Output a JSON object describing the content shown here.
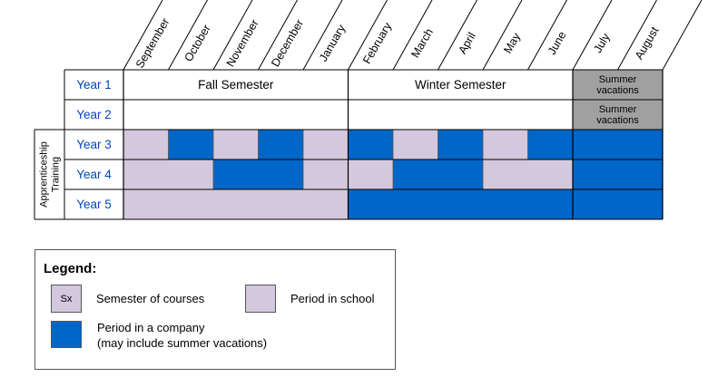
{
  "months": [
    "September",
    "October",
    "November",
    "December",
    "January",
    "February",
    "March",
    "April",
    "May",
    "June",
    "July",
    "August"
  ],
  "years": [
    "Year 1",
    "Year 2",
    "Year 3",
    "Year 4",
    "Year 5"
  ],
  "semesters": {
    "fall": "Fall Semester",
    "winter": "Winter Semester",
    "summer_line1": "Summer",
    "summer_line2": "vacations"
  },
  "side_label": {
    "line1": "Apprenticeship",
    "line2": "Training"
  },
  "schedule": {
    "year3": [
      "school",
      "company",
      "school",
      "company",
      "school",
      "company",
      "school",
      "company",
      "school",
      "company",
      "company",
      "company"
    ],
    "year4": [
      "school",
      "school",
      "company",
      "company",
      "school",
      "school",
      "company",
      "company",
      "school",
      "school",
      "company",
      "company"
    ],
    "year5": [
      "school",
      "school",
      "school",
      "school",
      "school",
      "company",
      "company",
      "company",
      "company",
      "company",
      "company",
      "company"
    ]
  },
  "colors": {
    "school": "#d3c8dd",
    "company": "#0066c8",
    "summer": "#a0a0a0",
    "year_text": "#0047b8",
    "grid": "#000000"
  },
  "legend": {
    "title": "Legend:",
    "sx_label": "Sx",
    "semester_of_courses": "Semester of courses",
    "period_in_school": "Period in school",
    "company_line1": "Period in a company",
    "company_line2": "(may include summer vacations)"
  }
}
